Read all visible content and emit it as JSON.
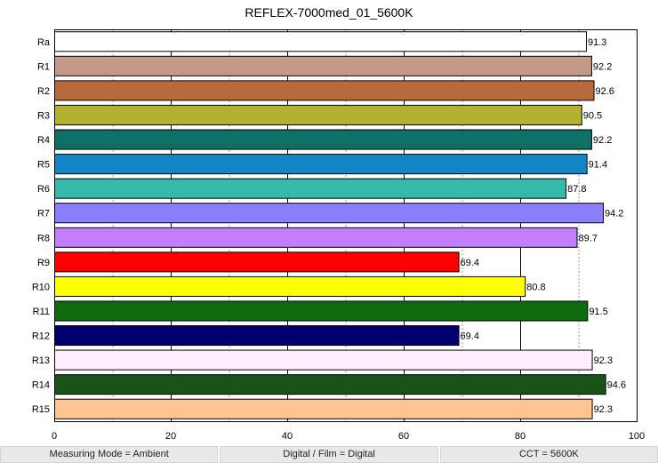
{
  "chart_data": {
    "type": "bar",
    "orientation": "horizontal",
    "title": "REFLEX-7000med_01_5600K",
    "xlabel": "",
    "ylabel": "",
    "xlim": [
      0,
      100
    ],
    "x_ticks": [
      0,
      20,
      40,
      60,
      80,
      100
    ],
    "grid": true,
    "categories": [
      "Ra",
      "R1",
      "R2",
      "R3",
      "R4",
      "R5",
      "R6",
      "R7",
      "R8",
      "R9",
      "R10",
      "R11",
      "R12",
      "R13",
      "R14",
      "R15"
    ],
    "values": [
      91.3,
      92.2,
      92.6,
      90.5,
      92.2,
      91.4,
      87.8,
      94.2,
      89.7,
      69.4,
      80.8,
      91.5,
      69.4,
      92.3,
      94.6,
      92.3
    ],
    "colors": [
      "#ffffff",
      "#c4998a",
      "#b86a3e",
      "#b5b02f",
      "#0f7068",
      "#1186c7",
      "#37b9ae",
      "#8a80ff",
      "#c27ffb",
      "#ff0000",
      "#ffff00",
      "#0c6b0c",
      "#000070",
      "#ffeeff",
      "#1b5218",
      "#ffc58f"
    ]
  },
  "footer": {
    "measuring_mode": "Measuring Mode = Ambient",
    "digital_film": "Digital / Film = Digital",
    "cct": "CCT = 5600K"
  }
}
